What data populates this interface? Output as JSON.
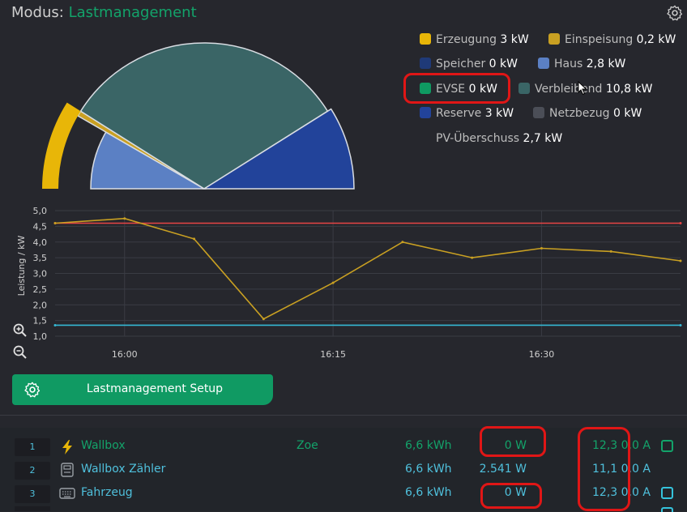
{
  "header": {
    "label": "Modus:",
    "mode": "Lastmanagement"
  },
  "icons": {
    "settings": "gear-icon",
    "zoom_in": "zoom-in-icon",
    "zoom_out": "zoom-out-icon",
    "cursor": "mouse-cursor-icon"
  },
  "legend": [
    {
      "name": "Erzeugung",
      "value": "3 kW",
      "color": "#e8b608"
    },
    {
      "name": "Einspeisung",
      "value": "0,2 kW",
      "color": "#c9a022"
    },
    {
      "name": "Speicher",
      "value": "0 kW",
      "color": "#1f3a78"
    },
    {
      "name": "Haus",
      "value": "2,8 kW",
      "color": "#5b80c4"
    },
    {
      "name": "EVSE",
      "value": "0 kW",
      "color": "#0f9a62"
    },
    {
      "name": "Verbleibend",
      "value": "10,8 kW",
      "color": "#3a6566"
    },
    {
      "name": "Reserve",
      "value": "3 kW",
      "color": "#22439a"
    },
    {
      "name": "Netzbezug",
      "value": "0 kW",
      "color": "#4b4e57"
    }
  ],
  "pv_surplus": {
    "name": "PV-Überschuss",
    "value": "2,7 kW"
  },
  "chart_data": [
    {
      "type": "pie",
      "layout": "semicircle",
      "slices": [
        {
          "name": "Haus",
          "value": 2.8,
          "color": "#5b80c4"
        },
        {
          "name": "Einspeisung",
          "value": 0.2,
          "color": "#c9a022"
        },
        {
          "name": "Verbleibend",
          "value": 10.8,
          "color": "#3a6566"
        },
        {
          "name": "Reserve",
          "value": 3,
          "color": "#22439a"
        }
      ],
      "outer_ring": [
        {
          "name": "Erzeugung",
          "value": 3,
          "color": "#e8b608"
        }
      ]
    },
    {
      "type": "line",
      "ylabel": "Leistung / kW",
      "ylim": [
        1.0,
        5.0
      ],
      "yticks": [
        "5,0",
        "4,5",
        "4,0",
        "3,5",
        "3,0",
        "2,5",
        "2,0",
        "1,5",
        "1,0"
      ],
      "xticks": [
        "16:00",
        "16:15",
        "16:30"
      ],
      "grid": true,
      "series": [
        {
          "color": "#e84545",
          "x": [
            "15:55",
            "16:40"
          ],
          "y": [
            4.6,
            4.6
          ]
        },
        {
          "color": "#c9a022",
          "x": [
            "15:55",
            "16:00",
            "16:05",
            "16:10",
            "16:15",
            "16:20",
            "16:25",
            "16:30",
            "16:35",
            "16:40"
          ],
          "y": [
            4.6,
            4.75,
            4.1,
            1.55,
            2.7,
            4.0,
            3.5,
            3.8,
            3.7,
            3.4
          ]
        },
        {
          "color": "#35b8d4",
          "x": [
            "15:55",
            "16:40"
          ],
          "y": [
            1.35,
            1.35
          ]
        }
      ]
    }
  ],
  "setup_button": {
    "label": "Lastmanagement Setup"
  },
  "rows": [
    {
      "num": "1",
      "name": "Wallbox",
      "vehicle": "Zoe",
      "energy": "6,6 kWh",
      "power": "0 W",
      "amps": "12,3 0,0 A",
      "icon": "lightning-icon",
      "name_color": "#13a36a",
      "value_color": "#13a36a",
      "checkbox": true
    },
    {
      "num": "2",
      "name": "Wallbox Zähler",
      "vehicle": "",
      "energy": "6,6 kWh",
      "power": "2.541 W",
      "amps": "11,1 0,0 A",
      "icon": "meter-icon",
      "name_color": "#4fc0dc",
      "value_color": "#4fc0dc",
      "checkbox": false
    },
    {
      "num": "3",
      "name": "Fahrzeug",
      "vehicle": "",
      "energy": "6,6 kWh",
      "power": "0 W",
      "amps": "12,3 0,0 A",
      "icon": "keyboard-icon",
      "name_color": "#4fc0dc",
      "value_color": "#4fc0dc",
      "checkbox": true
    }
  ]
}
